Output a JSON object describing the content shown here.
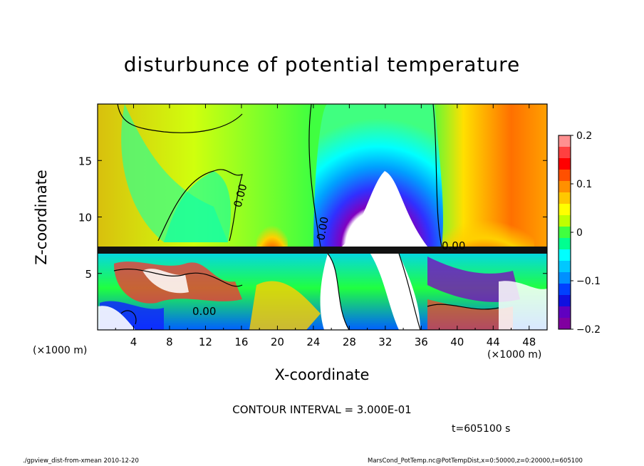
{
  "chart_data": {
    "type": "heatmap",
    "title": "disturbunce of potential temperature",
    "xlabel": "X-coordinate",
    "ylabel": "Z-coordinate",
    "x_unit": "(×1000 m)",
    "xlim": [
      0,
      50
    ],
    "ylim": [
      0,
      20
    ],
    "x_ticks": [
      4,
      8,
      12,
      16,
      20,
      24,
      28,
      32,
      36,
      40,
      44,
      48
    ],
    "y_ticks": [
      5,
      10,
      15
    ],
    "colorbar": {
      "range": [
        -0.2,
        0.2
      ],
      "tick_labels": [
        "0.2",
        "0.1",
        "0",
        "−0.1",
        "−0.2"
      ],
      "tick_values": [
        0.2,
        0.1,
        0,
        -0.1,
        -0.2
      ]
    },
    "contour_labels": [
      "0.00",
      "0.00",
      "0.00",
      "0.00"
    ],
    "features": {
      "cold_plume_center_x": 32,
      "warm_region_x": [
        40,
        48
      ],
      "boundary_layer_top_z": 7.3
    },
    "contour_interval": "CONTOUR INTERVAL = 3.000E-01",
    "time": "t=605100 s",
    "footer_left": "./gpview_dist-from-xmean   2010-12-20",
    "footer_right": "MarsCond_PotTemp.nc@PotTempDist,x=0:50000,z=0:20000,t=605100"
  }
}
